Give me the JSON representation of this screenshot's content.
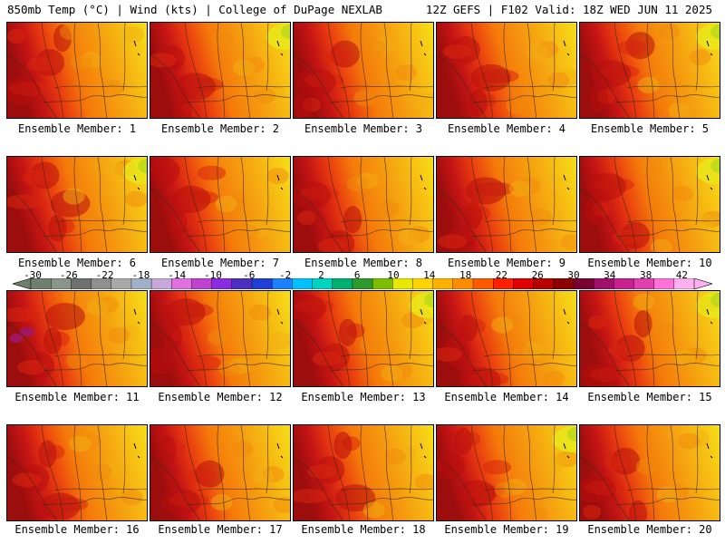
{
  "header": {
    "left": "850mb Temp (°C) | Wind (kts) | College of DuPage NEXLAB",
    "right": "12Z GEFS | F102 Valid: 18Z WED JUN 11 2025"
  },
  "panels": [
    "Ensemble Member: 1",
    "Ensemble Member: 2",
    "Ensemble Member: 3",
    "Ensemble Member: 4",
    "Ensemble Member: 5",
    "Ensemble Member: 6",
    "Ensemble Member: 7",
    "Ensemble Member: 8",
    "Ensemble Member: 9",
    "Ensemble Member: 10",
    "Ensemble Member: 11",
    "Ensemble Member: 12",
    "Ensemble Member: 13",
    "Ensemble Member: 14",
    "Ensemble Member: 15",
    "Ensemble Member: 16",
    "Ensemble Member: 17",
    "Ensemble Member: 18",
    "Ensemble Member: 19",
    "Ensemble Member: 20"
  ],
  "colorbar": {
    "ticks": [
      "-30",
      "-26",
      "-22",
      "-18",
      "-14",
      "-10",
      "-6",
      "-2",
      "2",
      "6",
      "10",
      "14",
      "18",
      "22",
      "26",
      "30",
      "34",
      "38",
      "42"
    ],
    "colors": [
      "#6e7f6e",
      "#8a958a",
      "#6d706d",
      "#8f8f8f",
      "#a9a9a9",
      "#9fb0c8",
      "#c8a8d8",
      "#e070e0",
      "#c040d0",
      "#8a2be2",
      "#4b2fbf",
      "#1f3fd6",
      "#1e7fff",
      "#00c0ff",
      "#00d4c0",
      "#00b070",
      "#2e9a2e",
      "#7ac000",
      "#e8e800",
      "#ffd400",
      "#ffb000",
      "#ff8c00",
      "#ff5a00",
      "#ff2000",
      "#e00000",
      "#b80000",
      "#8b0000",
      "#7a0030",
      "#a0106a",
      "#c8208f",
      "#e040b0",
      "#ff70d8",
      "#ffb0f0"
    ]
  }
}
